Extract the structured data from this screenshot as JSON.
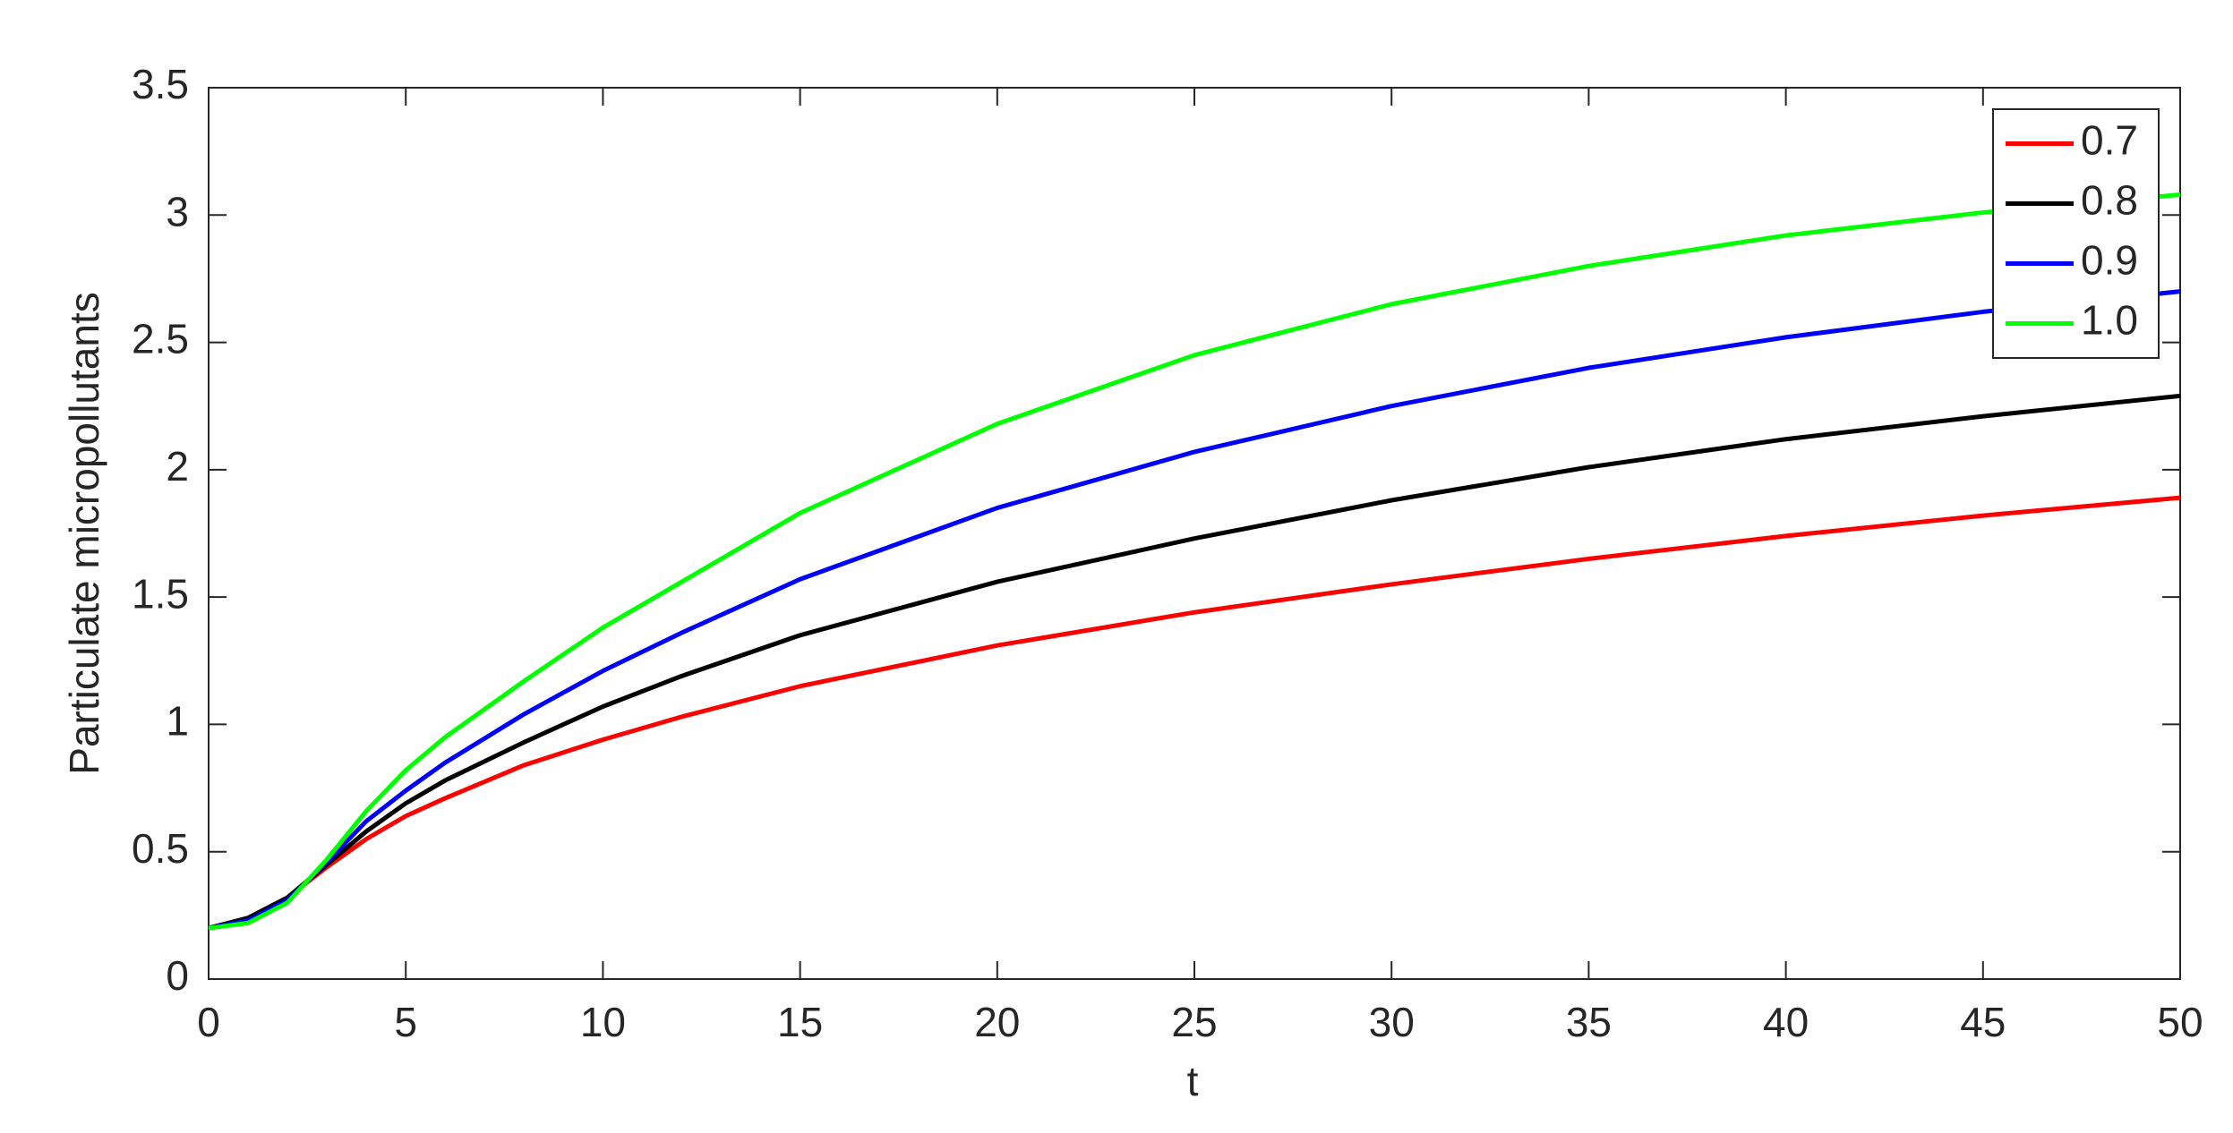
{
  "chart_data": {
    "type": "line",
    "x_label": "t",
    "y_label": "Particulate micropollutants",
    "x": [
      0,
      1,
      2,
      3,
      4,
      5,
      6,
      8,
      10,
      12,
      15,
      20,
      25,
      30,
      35,
      40,
      45,
      50
    ],
    "series": [
      {
        "name": "0.7",
        "color": "#ff0000",
        "values": [
          0.2,
          0.24,
          0.32,
          0.44,
          0.55,
          0.64,
          0.71,
          0.84,
          0.94,
          1.03,
          1.15,
          1.31,
          1.44,
          1.55,
          1.65,
          1.74,
          1.82,
          1.89
        ]
      },
      {
        "name": "0.8",
        "color": "#000000",
        "values": [
          0.2,
          0.24,
          0.32,
          0.45,
          0.58,
          0.69,
          0.78,
          0.93,
          1.07,
          1.19,
          1.35,
          1.56,
          1.73,
          1.88,
          2.01,
          2.12,
          2.21,
          2.29
        ]
      },
      {
        "name": "0.9",
        "color": "#0000ff",
        "values": [
          0.2,
          0.23,
          0.31,
          0.46,
          0.62,
          0.74,
          0.85,
          1.04,
          1.21,
          1.36,
          1.57,
          1.85,
          2.07,
          2.25,
          2.4,
          2.52,
          2.62,
          2.7
        ]
      },
      {
        "name": "1.0",
        "color": "#00ff00",
        "values": [
          0.2,
          0.22,
          0.3,
          0.47,
          0.66,
          0.82,
          0.95,
          1.17,
          1.38,
          1.56,
          1.83,
          2.18,
          2.45,
          2.65,
          2.8,
          2.92,
          3.01,
          3.08
        ]
      }
    ],
    "xlim": [
      0,
      50
    ],
    "xticks": [
      0,
      5,
      10,
      15,
      20,
      25,
      30,
      35,
      40,
      45,
      50
    ],
    "ylim": [
      0,
      3.5
    ],
    "yticks": [
      0,
      0.5,
      1,
      1.5,
      2,
      2.5,
      3,
      3.5
    ],
    "grid": false,
    "legend": "upper right"
  }
}
